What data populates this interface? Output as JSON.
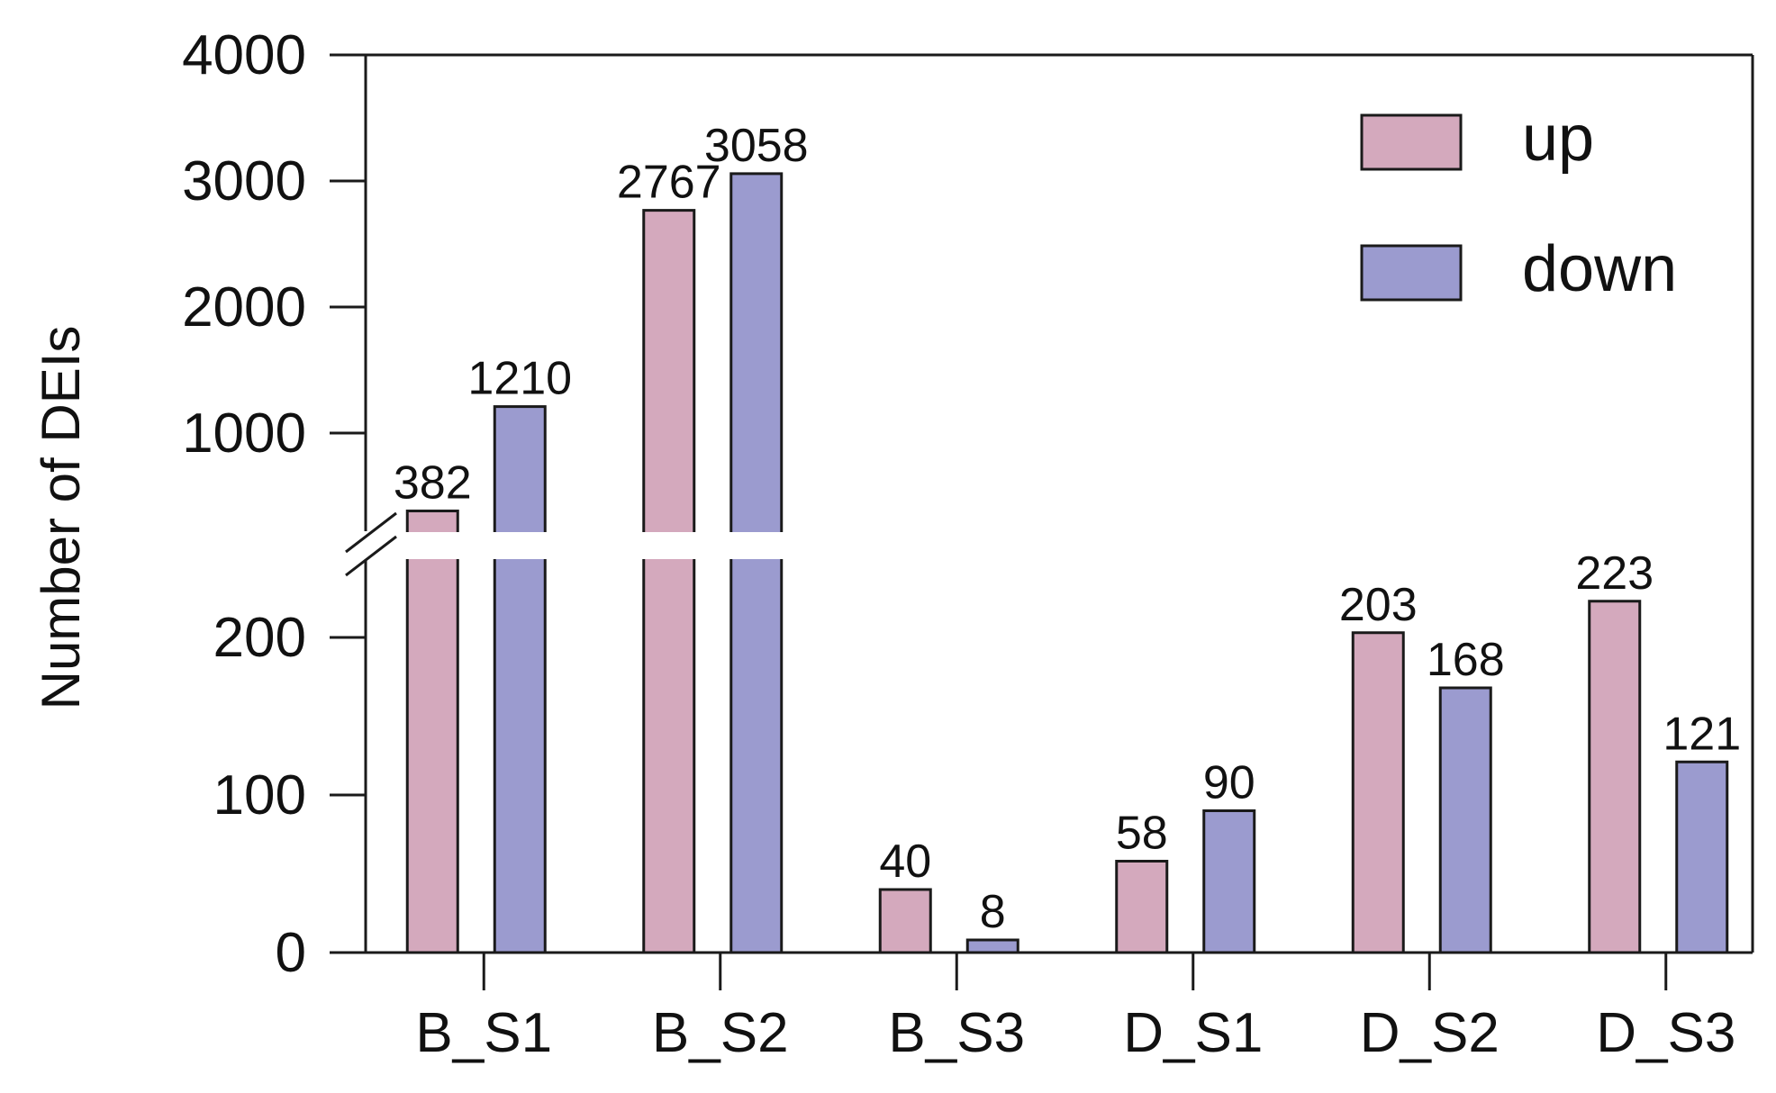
{
  "chart_data": {
    "type": "bar",
    "ylabel": "Number of DEIs",
    "categories": [
      "B_S1",
      "B_S2",
      "B_S3",
      "D_S1",
      "D_S2",
      "D_S3"
    ],
    "series": [
      {
        "name": "up",
        "color": "#d4a9bd",
        "values": [
          382,
          2767,
          40,
          58,
          203,
          223
        ]
      },
      {
        "name": "down",
        "color": "#9b9bcf",
        "values": [
          1210,
          3058,
          8,
          90,
          168,
          121
        ]
      }
    ],
    "data_labels": {
      "up": [
        "382",
        "2767",
        "40",
        "58",
        "203",
        "223"
      ],
      "down": [
        "1210",
        "3058",
        "8",
        "90",
        "168",
        "121"
      ]
    },
    "y_axis": {
      "broken": true,
      "lower_segment": {
        "ylim": [
          0,
          250
        ],
        "ticks": [
          0,
          100,
          200
        ]
      },
      "upper_segment": {
        "ylim": [
          350,
          4000
        ],
        "ticks": [
          1000,
          2000,
          3000,
          4000
        ]
      }
    },
    "legend": {
      "position": "top-right",
      "entries": [
        "up",
        "down"
      ]
    },
    "grid": false,
    "colors": {
      "axis": "#1a1a1a",
      "bar_outline": "#1a1a1a"
    }
  }
}
